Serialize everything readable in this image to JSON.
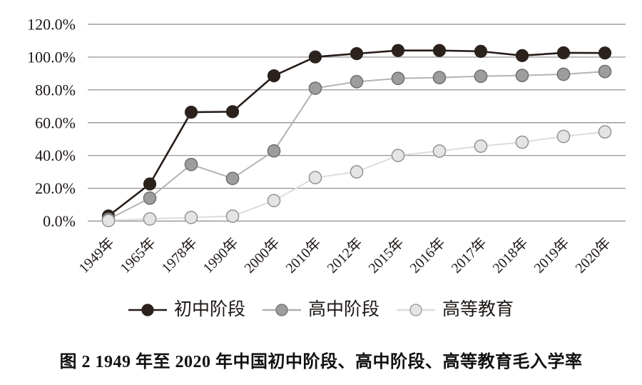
{
  "chart_data": {
    "type": "line",
    "title": "图 2  1949 年至 2020 年中国初中阶段、高中阶段、高等教育毛入学率",
    "categories": [
      "1949年",
      "1965年",
      "1978年",
      "1990年",
      "2000年",
      "2010年",
      "2012年",
      "2015年",
      "2016年",
      "2017年",
      "2018年",
      "2019年",
      "2020年"
    ],
    "xlabel": "",
    "ylabel": "",
    "ylim": [
      0,
      120
    ],
    "y_tick_step": 20,
    "y_ticks": [
      "0.0%",
      "20.0%",
      "40.0%",
      "60.0%",
      "80.0%",
      "100.0%",
      "120.0%"
    ],
    "grid": "horizontal-only",
    "legend_position": "bottom",
    "series": [
      {
        "name": "初中阶段",
        "values": [
          3.1,
          22.6,
          66.4,
          66.7,
          88.6,
          100.1,
          102.1,
          104.0,
          104.0,
          103.5,
          100.9,
          102.6,
          102.5
        ],
        "line_color": "#261c18",
        "marker_fill": "#2b211d",
        "marker_stroke": "#2b211d"
      },
      {
        "name": "高中阶段",
        "values": [
          1.1,
          14.0,
          34.5,
          26.0,
          42.8,
          81.0,
          85.0,
          87.0,
          87.5,
          88.3,
          88.8,
          89.5,
          91.2
        ],
        "line_color": "#b5b2b1",
        "marker_fill": "#9d9d9d",
        "marker_stroke": "#6f6f6f"
      },
      {
        "name": "高等教育",
        "values": [
          0.3,
          1.3,
          2.2,
          3.0,
          12.5,
          26.5,
          30.0,
          40.0,
          42.7,
          45.7,
          48.1,
          51.6,
          54.4
        ],
        "line_color": "#dedcdc",
        "marker_fill": "#e5e4e4",
        "marker_stroke": "#949494"
      }
    ],
    "gridline_color": "#8c8988",
    "text_color": "#1d1715"
  },
  "caption": "图 2  1949 年至 2020 年中国初中阶段、高中阶段、高等教育毛入学率"
}
